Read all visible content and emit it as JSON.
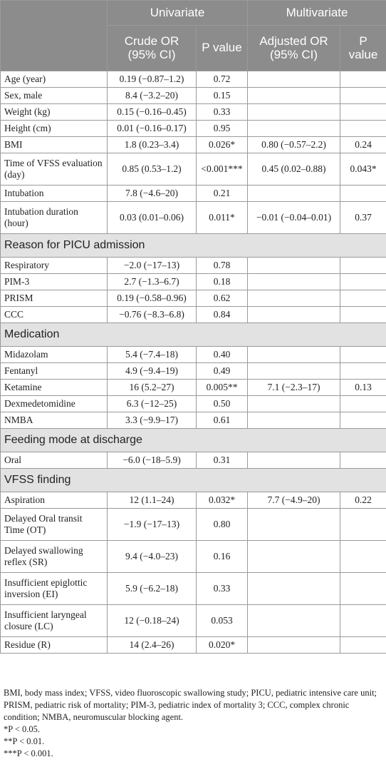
{
  "header": {
    "univariate": "Univariate",
    "multivariate": "Multivariate",
    "crude_or": "Crude OR (95% CI)",
    "p_value_1": "P value",
    "adjusted_or": "Adjusted OR (95% CI)",
    "p_value_2": "P value"
  },
  "rows": {
    "age": {
      "label": "Age (year)",
      "crude": "0.19 (−0.87–1.2)",
      "p1": "0.72",
      "adj": "",
      "p2": ""
    },
    "sex": {
      "label": "Sex, male",
      "crude": "8.4 (−3.2–20)",
      "p1": "0.15",
      "adj": "",
      "p2": ""
    },
    "weight": {
      "label": "Weight (kg)",
      "crude": "0.15 (−0.16–0.45)",
      "p1": "0.33",
      "adj": "",
      "p2": ""
    },
    "height": {
      "label": "Height (cm)",
      "crude": "0.01 (−0.16–0.17)",
      "p1": "0.95",
      "adj": "",
      "p2": ""
    },
    "bmi": {
      "label": "BMI",
      "crude": "1.8 (0.23–3.4)",
      "p1": "0.026*",
      "adj": "0.80 (−0.57–2.2)",
      "p2": "0.24"
    },
    "vfss_time": {
      "label": "Time of VFSS evaluation (day)",
      "crude": "0.85 (0.53–1.2)",
      "p1": "<0.001***",
      "adj": "0.45 (0.02–0.88)",
      "p2": "0.043*"
    },
    "intubation": {
      "label": "Intubation",
      "crude": "7.8 (−4.6–20)",
      "p1": "0.21",
      "adj": "",
      "p2": ""
    },
    "intubation_dur": {
      "label": "Intubation duration (hour)",
      "crude": "0.03 (0.01–0.06)",
      "p1": "0.011*",
      "adj": "−0.01 (−0.04–0.01)",
      "p2": "0.37"
    },
    "respiratory": {
      "label": "Respiratory",
      "crude": "−2.0 (−17–13)",
      "p1": "0.78",
      "adj": "",
      "p2": ""
    },
    "pim3": {
      "label": "PIM-3",
      "crude": "2.7 (−1.3–6.7)",
      "p1": "0.18",
      "adj": "",
      "p2": ""
    },
    "prism": {
      "label": "PRISM",
      "crude": "0.19 (−0.58–0.96)",
      "p1": "0.62",
      "adj": "",
      "p2": ""
    },
    "ccc": {
      "label": "CCC",
      "crude": "−0.76 (−8.3–6.8)",
      "p1": "0.84",
      "adj": "",
      "p2": ""
    },
    "midazolam": {
      "label": "Midazolam",
      "crude": "5.4 (−7.4–18)",
      "p1": "0.40",
      "adj": "",
      "p2": ""
    },
    "fentanyl": {
      "label": "Fentanyl",
      "crude": "4.9 (−9.4–19)",
      "p1": "0.49",
      "adj": "",
      "p2": ""
    },
    "ketamine": {
      "label": "Ketamine",
      "crude": "16 (5.2–27)",
      "p1": "0.005**",
      "adj": "7.1 (−2.3–17)",
      "p2": "0.13"
    },
    "dexmed": {
      "label": "Dexmedetomidine",
      "crude": "6.3 (−12–25)",
      "p1": "0.50",
      "adj": "",
      "p2": ""
    },
    "nmba": {
      "label": "NMBA",
      "crude": "3.3 (−9.9–17)",
      "p1": "0.61",
      "adj": "",
      "p2": ""
    },
    "oral": {
      "label": "Oral",
      "crude": "−6.0 (−18–5.9)",
      "p1": "0.31",
      "adj": "",
      "p2": ""
    },
    "aspiration": {
      "label": "Aspiration",
      "crude": "12 (1.1–24)",
      "p1": "0.032*",
      "adj": "7.7 (−4.9–20)",
      "p2": "0.22"
    },
    "ot": {
      "label": "Delayed Oral transit Time (OT)",
      "crude": "−1.9 (−17–13)",
      "p1": "0.80",
      "adj": "",
      "p2": ""
    },
    "sr": {
      "label": "Delayed swallowing reflex (SR)",
      "crude": "9.4 (−4.0–23)",
      "p1": "0.16",
      "adj": "",
      "p2": ""
    },
    "ei": {
      "label": "Insufficient epiglottic inversion (EI)",
      "crude": "5.9 (−6.2–18)",
      "p1": "0.33",
      "adj": "",
      "p2": ""
    },
    "lc": {
      "label": "Insufficient laryngeal closure (LC)",
      "crude": "12 (−0.18–24)",
      "p1": "0.053",
      "adj": "",
      "p2": ""
    },
    "residue": {
      "label": "Residue (R)",
      "crude": "14 (2.4–26)",
      "p1": "0.020*",
      "adj": "",
      "p2": ""
    }
  },
  "sections": {
    "picu": "Reason for PICU admission",
    "medication": "Medication",
    "feeding": "Feeding mode at discharge",
    "vfss": "VFSS finding"
  },
  "footnotes": {
    "abbrev": "BMI, body mass index; VFSS, video fluoroscopic swallowing study; PICU, pediatric intensive care unit; PRISM, pediatric risk of mortality; PIM-3, pediatric index of mortality 3; CCC, complex chronic condition; NMBA, neuromuscular blocking agent.",
    "p05": "*P < 0.05.",
    "p01": "**P < 0.01.",
    "p001": "***P < 0.001."
  }
}
